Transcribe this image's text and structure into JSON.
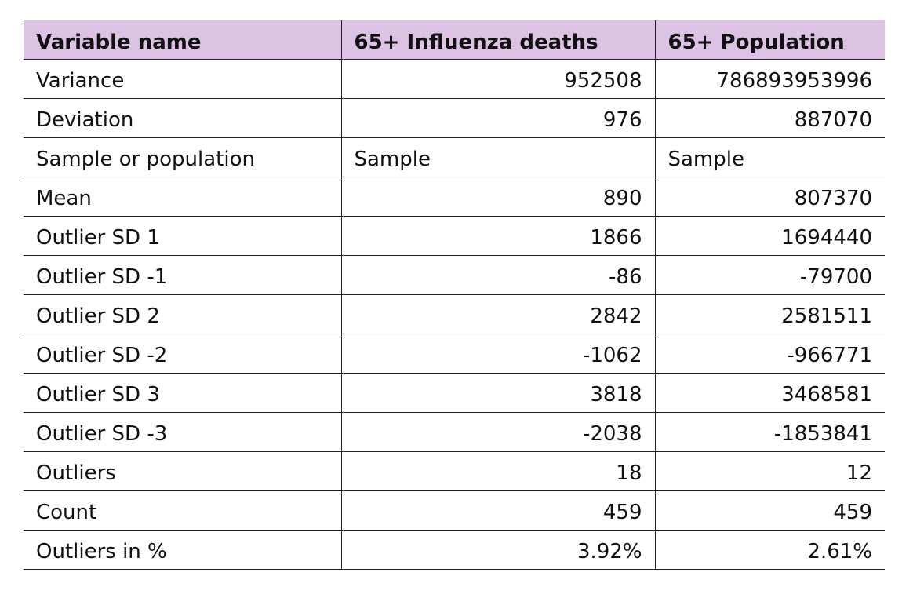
{
  "header": {
    "col1": "Variable name",
    "col2": "65+ Influenza deaths",
    "col3": "65+ Population"
  },
  "rows": [
    {
      "label": "Variance",
      "deaths": "952508",
      "population": "786893953996",
      "align": "num"
    },
    {
      "label": "Deviation",
      "deaths": "976",
      "population": "887070",
      "align": "num"
    },
    {
      "label": "Sample or population",
      "deaths": "Sample",
      "population": "Sample",
      "align": "txt"
    },
    {
      "label": "Mean",
      "deaths": "890",
      "population": "807370",
      "align": "num"
    },
    {
      "label": "Outlier SD 1",
      "deaths": "1866",
      "population": "1694440",
      "align": "num"
    },
    {
      "label": "Outlier SD -1",
      "deaths": "-86",
      "population": "-79700",
      "align": "num"
    },
    {
      "label": "Outlier SD 2",
      "deaths": "2842",
      "population": "2581511",
      "align": "num"
    },
    {
      "label": "Outlier SD -2",
      "deaths": "-1062",
      "population": "-966771",
      "align": "num"
    },
    {
      "label": "Outlier SD 3",
      "deaths": "3818",
      "population": "3468581",
      "align": "num"
    },
    {
      "label": "Outlier SD -3",
      "deaths": "-2038",
      "population": "-1853841",
      "align": "num"
    },
    {
      "label": "Outliers",
      "deaths": "18",
      "population": "12",
      "align": "num"
    },
    {
      "label": "Count",
      "deaths": "459",
      "population": "459",
      "align": "num"
    },
    {
      "label": "Outliers in %",
      "deaths": "3.92%",
      "population": "2.61%",
      "align": "num"
    }
  ],
  "colors": {
    "header_bg": "#dcc3e3",
    "border": "#222222",
    "text": "#111111"
  }
}
